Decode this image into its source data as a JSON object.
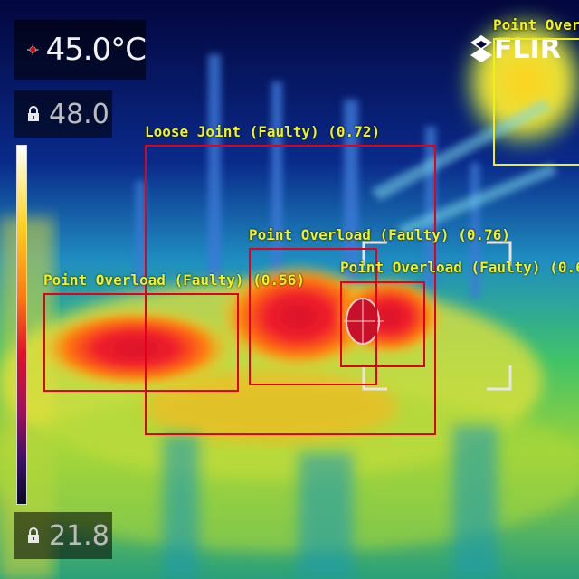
{
  "readouts": {
    "spot_temp": "45.0°C",
    "max_temp": "48.0",
    "min_temp": "21.8"
  },
  "brand": {
    "logo_text": "FLIR"
  },
  "detections": [
    {
      "label": "Loose Joint (Faulty) (0.72)",
      "color": "#e3001c"
    },
    {
      "label": "Point Overload (Faulty) (0.76)",
      "color": "#e3001c"
    },
    {
      "label": "Point Overload (Faulty) (0.56)",
      "color": "#e3001c"
    },
    {
      "label": "Point Overload (Faulty) (0.6",
      "color": "#e3001c"
    },
    {
      "label": "Point Over",
      "color": "#f2ee1c"
    }
  ],
  "icons": {
    "spot": "crosshair-spot-icon",
    "lock": "lock-icon",
    "logo": "flir-logo-icon"
  },
  "colors": {
    "label_text": "#f2f21c",
    "box_red": "#e3001c",
    "box_yellow": "#f2ee1c"
  }
}
